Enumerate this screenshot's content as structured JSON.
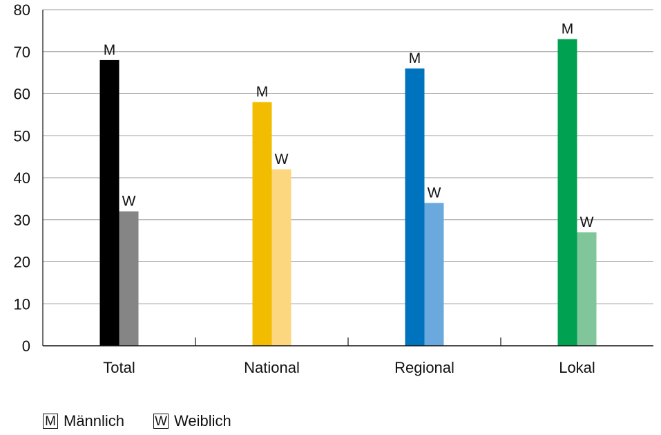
{
  "chart_data": {
    "type": "bar",
    "categories": [
      "Total",
      "National",
      "Regional",
      "Lokal"
    ],
    "series": [
      {
        "name": "Männlich",
        "short": "M",
        "values": [
          68,
          58,
          66,
          73
        ],
        "colors": [
          "#000000",
          "#f2bd00",
          "#0073be",
          "#00a151"
        ]
      },
      {
        "name": "Weiblich",
        "short": "W",
        "values": [
          32,
          42,
          34,
          27
        ],
        "colors": [
          "#858585",
          "#fcd77f",
          "#6aa9dd",
          "#80c69a"
        ]
      }
    ],
    "ylim": [
      0,
      80
    ],
    "yticks": [
      0,
      10,
      20,
      30,
      40,
      50,
      60,
      70,
      80
    ],
    "grid": true,
    "legend_position": "bottom-left"
  },
  "legend": {
    "m_key": "M",
    "m_label": "Männlich",
    "w_key": "W",
    "w_label": "Weiblich"
  }
}
